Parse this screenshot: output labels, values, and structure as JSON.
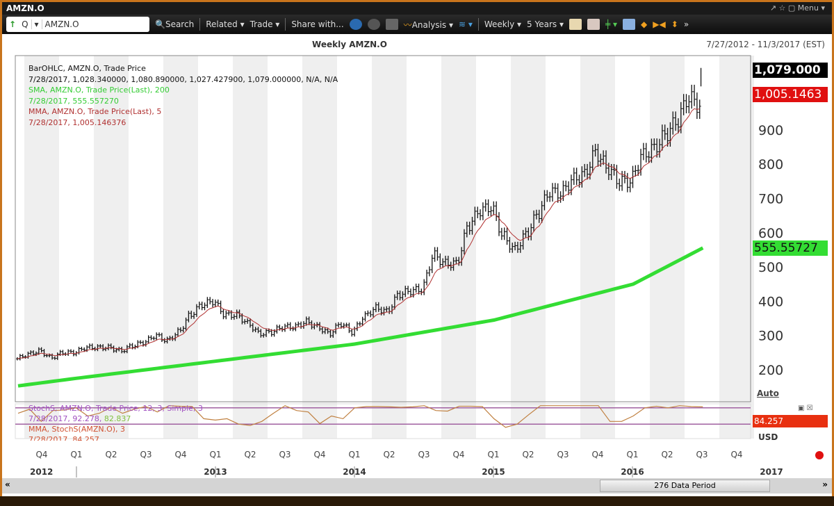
{
  "window": {
    "title": "AMZN.O",
    "controls": "↗ ☆ ▢ Menu ▾"
  },
  "toolbar": {
    "arrow": "↑",
    "q": "Q",
    "ric": "AMZN.O",
    "search": "Search",
    "related": "Related ▾",
    "trade": "Trade ▾",
    "share": "Share with...",
    "analysis": "Analysis ▾",
    "interval": "Weekly ▾",
    "range": "5 Years ▾",
    "more": "»"
  },
  "chart": {
    "title": "Weekly AMZN.O",
    "date_range": "7/27/2012 - 11/3/2017 (EST)",
    "legend": {
      "l1": "BarOHLC, AMZN.O, Trade Price",
      "l2": "7/28/2017, 1,028.340000, 1,080.890000, 1,027.427900, 1,079.000000, N/A, N/A",
      "l3": "SMA, AMZN.O, Trade Price(Last),  200",
      "l4": "7/28/2017, 555.557270",
      "l5": "MMA, AMZN.O, Trade Price(Last),  5",
      "l6": "7/28/2017, 1,005.146376"
    },
    "badges": {
      "last": "1,079.000",
      "mma": "1,005.1463",
      "sma": "555.55727",
      "stoch": "84.257"
    },
    "auto": "Auto",
    "currency": "USD",
    "stoch_legend": {
      "l1": "StochS, AMZN.O, Trade Price,  12, 3, Simple, 3",
      "l2a": "7/28/2017, 92.278, ",
      "l2b": "82.837",
      "l3": "MMA, StochS(AMZN.O),  3",
      "l4": "7/28/2017, 84.257"
    },
    "scroll_label": "276 Data Period",
    "scroll_left": "«",
    "scroll_right": "»"
  },
  "colors": {
    "sma": "#33dd33",
    "mma": "#b03030",
    "stoch": "#c08040",
    "bands": "#a060a0"
  },
  "chart_data": {
    "type": "ohlc",
    "start": "2012-08",
    "frequency": "monthly-approx",
    "price_close": [
      245,
      255,
      235,
      250,
      250,
      265,
      265,
      265,
      255,
      270,
      280,
      300,
      285,
      310,
      360,
      390,
      400,
      360,
      360,
      335,
      305,
      310,
      325,
      325,
      340,
      325,
      305,
      335,
      310,
      355,
      380,
      370,
      420,
      430,
      435,
      535,
      510,
      510,
      620,
      665,
      675,
      590,
      550,
      595,
      655,
      720,
      715,
      755,
      770,
      835,
      790,
      750,
      750,
      825,
      845,
      885,
      925,
      995,
      970,
      1079
    ],
    "sma200": [
      [
        0,
        153
      ],
      [
        5,
        175
      ],
      [
        17,
        225
      ],
      [
        29,
        275
      ],
      [
        41,
        345
      ],
      [
        53,
        450
      ],
      [
        59,
        555.56
      ]
    ],
    "stoch": [
      60,
      75,
      30,
      70,
      72,
      80,
      50,
      60,
      82,
      60,
      75,
      85,
      65,
      88,
      86,
      85,
      40,
      35,
      40,
      20,
      15,
      30,
      60,
      88,
      70,
      65,
      22,
      50,
      40,
      80,
      85,
      85,
      84,
      82,
      84,
      88,
      70,
      68,
      86,
      86,
      85,
      40,
      8,
      20,
      55,
      88,
      88,
      88,
      88,
      88,
      88,
      30,
      30,
      50,
      80,
      86,
      80,
      88,
      85,
      84
    ],
    "stoch_lines": [
      80,
      20
    ],
    "yaxis": {
      "ticks": [
        200,
        300,
        400,
        500,
        600,
        700,
        800,
        900
      ],
      "range": [
        100,
        1100
      ]
    },
    "quarters": [
      "Q4",
      "Q1",
      "Q2",
      "Q3",
      "Q4",
      "Q1",
      "Q2",
      "Q3",
      "Q4",
      "Q1",
      "Q2",
      "Q3",
      "Q4",
      "Q1",
      "Q2",
      "Q3",
      "Q4",
      "Q1",
      "Q2",
      "Q3",
      "Q4"
    ],
    "years": [
      "2012",
      "2013",
      "2014",
      "2015",
      "2016",
      "2017"
    ]
  }
}
